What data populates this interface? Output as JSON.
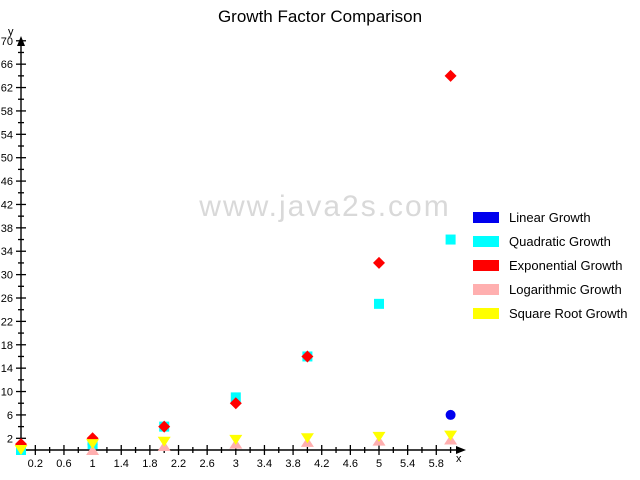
{
  "title": "Growth Factor Comparison",
  "watermark": "www.java2s.com",
  "chart_data": {
    "type": "scatter",
    "title": "Growth Factor Comparison",
    "xlabel": "x",
    "ylabel": "y",
    "xlim": [
      0,
      6.2
    ],
    "ylim": [
      0,
      72
    ],
    "grid": false,
    "legend_position": "right",
    "x_minor_tick_step": 0.2,
    "y_minor_tick_step": 2,
    "x_tick_labels": [
      "0.2",
      "0.6",
      "1",
      "1.4",
      "1.8",
      "2.2",
      "2.6",
      "3",
      "3.4",
      "3.8",
      "4.2",
      "4.6",
      "5",
      "5.4",
      "5.8"
    ],
    "y_tick_labels": [
      "2",
      "6",
      "10",
      "14",
      "18",
      "22",
      "26",
      "30",
      "34",
      "38",
      "42",
      "46",
      "50",
      "54",
      "58",
      "62",
      "66",
      "70"
    ],
    "series": [
      {
        "name": "Linear Growth",
        "color": "#0000EE",
        "marker": "circle",
        "points": [
          [
            0,
            0
          ],
          [
            1,
            1
          ],
          [
            6,
            6
          ]
        ]
      },
      {
        "name": "Quadratic Growth",
        "color": "#00FFFF",
        "marker": "square",
        "points": [
          [
            0,
            0
          ],
          [
            1,
            1
          ],
          [
            2,
            4
          ],
          [
            3,
            9
          ],
          [
            4,
            16
          ],
          [
            5,
            25
          ],
          [
            6,
            36
          ]
        ]
      },
      {
        "name": "Exponential Growth",
        "color": "#FF0000",
        "marker": "diamond",
        "points": [
          [
            0,
            1
          ],
          [
            1,
            2
          ],
          [
            2,
            4
          ],
          [
            3,
            8
          ],
          [
            4,
            16
          ],
          [
            5,
            32
          ],
          [
            6,
            64
          ]
        ]
      },
      {
        "name": "Logarithmic Growth",
        "color": "#FFAFAF",
        "marker": "triangle-up",
        "points": [
          [
            1,
            0
          ],
          [
            2,
            0.69
          ],
          [
            3,
            1.1
          ],
          [
            4,
            1.39
          ],
          [
            5,
            1.61
          ],
          [
            6,
            1.79
          ]
        ]
      },
      {
        "name": "Square Root Growth",
        "color": "#FFFF00",
        "marker": "triangle-down",
        "points": [
          [
            0,
            0
          ],
          [
            1,
            1
          ],
          [
            2,
            1.41
          ],
          [
            3,
            1.73
          ],
          [
            4,
            2
          ],
          [
            5,
            2.24
          ],
          [
            6,
            2.45
          ]
        ]
      }
    ]
  }
}
